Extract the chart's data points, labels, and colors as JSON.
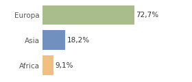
{
  "categories": [
    "Africa",
    "Asia",
    "Europa"
  ],
  "values": [
    9.1,
    18.2,
    72.7
  ],
  "labels": [
    "9,1%",
    "18,2%",
    "72,7%"
  ],
  "bar_colors": [
    "#f0c080",
    "#7090bf",
    "#a8bc8c"
  ],
  "xlim": [
    0,
    100
  ],
  "background_color": "#ffffff",
  "label_fontsize": 7.5,
  "tick_fontsize": 7.5,
  "bar_height": 0.78,
  "figsize": [
    2.8,
    1.2
  ],
  "dpi": 100
}
